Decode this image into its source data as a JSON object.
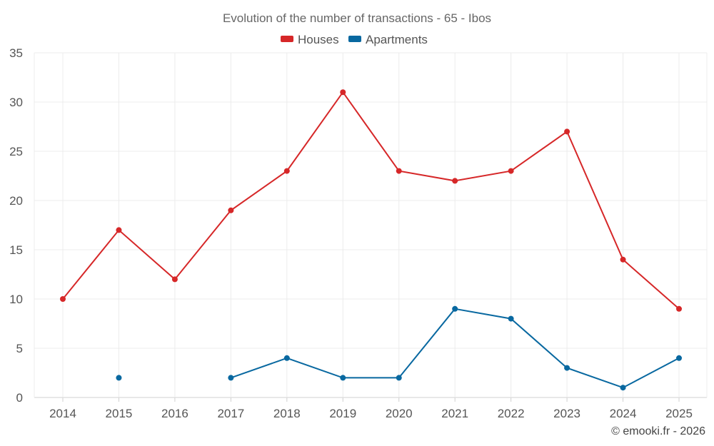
{
  "chart_data": {
    "type": "line",
    "title": "Evolution of the number of transactions - 65 - Ibos",
    "xlabel": "",
    "ylabel": "",
    "categories": [
      "2014",
      "2015",
      "2016",
      "2017",
      "2018",
      "2019",
      "2020",
      "2021",
      "2022",
      "2023",
      "2024",
      "2025"
    ],
    "ylim": [
      0,
      35
    ],
    "yticks": [
      0,
      5,
      10,
      15,
      20,
      25,
      30,
      35
    ],
    "grid": true,
    "legend_position": "top-center",
    "series": [
      {
        "name": "Houses",
        "color": "#d62728",
        "values": [
          10,
          17,
          12,
          19,
          23,
          31,
          23,
          22,
          23,
          27,
          14,
          9
        ]
      },
      {
        "name": "Apartments",
        "color": "#0868a0",
        "values": [
          null,
          2,
          null,
          2,
          4,
          2,
          2,
          9,
          8,
          3,
          1,
          4
        ]
      }
    ]
  },
  "credit": "© emooki.fr - 2026"
}
